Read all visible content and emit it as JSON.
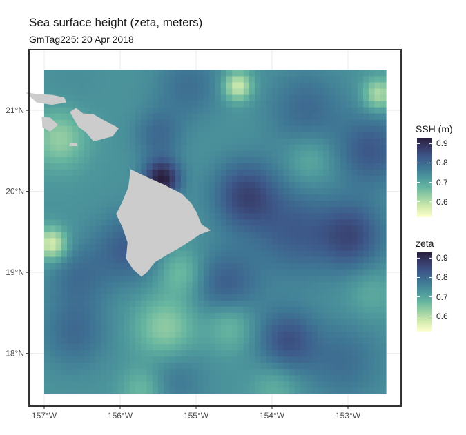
{
  "title": "Sea surface height (zeta, meters)",
  "subtitle": "GmTag225: 20 Apr 2018",
  "colors": {
    "panel_background": "#ffffff",
    "gridline": "#ebebeb",
    "panel_border": "#333333",
    "land": "#cccccc",
    "colormap": [
      "#fdfece",
      "#d4ecae",
      "#9dd1a4",
      "#67b6a0",
      "#4d979c",
      "#3f7895",
      "#3d5a8b",
      "#383c6a",
      "#291f3d"
    ]
  },
  "chart_data": {
    "type": "heatmap",
    "variable": "zeta",
    "xlim": [
      -157.2,
      -152.3
    ],
    "ylim": [
      17.35,
      21.75
    ],
    "data_extent": {
      "lon": [
        -157.0,
        -152.5
      ],
      "lat": [
        17.5,
        21.5
      ]
    },
    "value_range": [
      0.52,
      0.93
    ],
    "x_ticks": [
      {
        "value": -157,
        "label": "157°W"
      },
      {
        "value": -156,
        "label": "156°W"
      },
      {
        "value": -155,
        "label": "155°W"
      },
      {
        "value": -154,
        "label": "154°W"
      },
      {
        "value": -153,
        "label": "153°W"
      }
    ],
    "y_ticks": [
      {
        "value": 21,
        "label": "21°N"
      },
      {
        "value": 20,
        "label": "20°N"
      },
      {
        "value": 19,
        "label": "19°N"
      },
      {
        "value": 18,
        "label": "18°N"
      }
    ],
    "background_level": 0.73,
    "features": [
      {
        "lon": -155.45,
        "lat": 20.15,
        "value": 0.93,
        "sigma": 0.17
      },
      {
        "lon": -155.9,
        "lat": 19.3,
        "value": 0.82,
        "sigma": 0.3
      },
      {
        "lon": -156.55,
        "lat": 18.95,
        "value": 0.79,
        "sigma": 0.28
      },
      {
        "lon": -154.35,
        "lat": 19.95,
        "value": 0.86,
        "sigma": 0.3
      },
      {
        "lon": -153.7,
        "lat": 19.5,
        "value": 0.82,
        "sigma": 0.38
      },
      {
        "lon": -152.95,
        "lat": 19.45,
        "value": 0.85,
        "sigma": 0.3
      },
      {
        "lon": -152.7,
        "lat": 20.5,
        "value": 0.83,
        "sigma": 0.3
      },
      {
        "lon": -153.55,
        "lat": 21.0,
        "value": 0.8,
        "sigma": 0.35
      },
      {
        "lon": -155.1,
        "lat": 21.3,
        "value": 0.79,
        "sigma": 0.3
      },
      {
        "lon": -155.5,
        "lat": 20.7,
        "value": 0.8,
        "sigma": 0.22
      },
      {
        "lon": -156.6,
        "lat": 21.3,
        "value": 0.74,
        "sigma": 0.3
      },
      {
        "lon": -154.6,
        "lat": 18.85,
        "value": 0.82,
        "sigma": 0.3
      },
      {
        "lon": -153.8,
        "lat": 18.15,
        "value": 0.84,
        "sigma": 0.28
      },
      {
        "lon": -153.05,
        "lat": 17.9,
        "value": 0.79,
        "sigma": 0.35
      },
      {
        "lon": -156.6,
        "lat": 18.25,
        "value": 0.8,
        "sigma": 0.3
      },
      {
        "lon": -155.3,
        "lat": 17.7,
        "value": 0.78,
        "sigma": 0.3
      },
      {
        "lon": -154.45,
        "lat": 21.3,
        "value": 0.57,
        "sigma": 0.13
      },
      {
        "lon": -156.9,
        "lat": 19.35,
        "value": 0.56,
        "sigma": 0.14
      },
      {
        "lon": -155.4,
        "lat": 18.3,
        "value": 0.63,
        "sigma": 0.28
      },
      {
        "lon": -154.55,
        "lat": 18.35,
        "value": 0.66,
        "sigma": 0.22
      },
      {
        "lon": -152.6,
        "lat": 21.2,
        "value": 0.6,
        "sigma": 0.14
      },
      {
        "lon": -156.8,
        "lat": 20.65,
        "value": 0.63,
        "sigma": 0.25
      },
      {
        "lon": -155.2,
        "lat": 19.0,
        "value": 0.66,
        "sigma": 0.2
      },
      {
        "lon": -153.5,
        "lat": 20.4,
        "value": 0.68,
        "sigma": 0.22
      },
      {
        "lon": -155.7,
        "lat": 17.55,
        "value": 0.66,
        "sigma": 0.2
      },
      {
        "lon": -153.95,
        "lat": 17.6,
        "value": 0.68,
        "sigma": 0.22
      },
      {
        "lon": -152.7,
        "lat": 18.75,
        "value": 0.69,
        "sigma": 0.22
      }
    ],
    "land": [
      {
        "name": "Hawaii",
        "lonlat": [
          [
            -155.86,
            20.27
          ],
          [
            -155.66,
            20.18
          ],
          [
            -155.42,
            20.08
          ],
          [
            -155.19,
            19.97
          ],
          [
            -155.07,
            19.86
          ],
          [
            -155.0,
            19.75
          ],
          [
            -154.93,
            19.59
          ],
          [
            -154.81,
            19.52
          ],
          [
            -154.95,
            19.47
          ],
          [
            -155.19,
            19.32
          ],
          [
            -155.38,
            19.22
          ],
          [
            -155.54,
            19.13
          ],
          [
            -155.65,
            19.0
          ],
          [
            -155.72,
            18.95
          ],
          [
            -155.83,
            19.04
          ],
          [
            -155.92,
            19.17
          ],
          [
            -155.9,
            19.37
          ],
          [
            -155.97,
            19.56
          ],
          [
            -156.05,
            19.72
          ],
          [
            -155.98,
            19.85
          ],
          [
            -155.89,
            20.05
          ],
          [
            -155.86,
            20.27
          ]
        ]
      },
      {
        "name": "Maui",
        "lonlat": [
          [
            -156.66,
            20.98
          ],
          [
            -156.58,
            21.03
          ],
          [
            -156.49,
            20.96
          ],
          [
            -156.35,
            20.95
          ],
          [
            -156.2,
            20.87
          ],
          [
            -156.02,
            20.78
          ],
          [
            -156.1,
            20.68
          ],
          [
            -156.35,
            20.62
          ],
          [
            -156.45,
            20.73
          ],
          [
            -156.55,
            20.8
          ],
          [
            -156.66,
            20.98
          ]
        ]
      },
      {
        "name": "Molokai",
        "lonlat": [
          [
            -157.24,
            21.22
          ],
          [
            -157.1,
            21.2
          ],
          [
            -156.9,
            21.19
          ],
          [
            -156.74,
            21.16
          ],
          [
            -156.71,
            21.1
          ],
          [
            -156.9,
            21.07
          ],
          [
            -157.1,
            21.1
          ],
          [
            -157.24,
            21.22
          ]
        ]
      },
      {
        "name": "Lanai",
        "lonlat": [
          [
            -157.03,
            20.92
          ],
          [
            -156.92,
            20.91
          ],
          [
            -156.82,
            20.82
          ],
          [
            -156.92,
            20.74
          ],
          [
            -157.02,
            20.79
          ],
          [
            -157.03,
            20.92
          ]
        ]
      },
      {
        "name": "Kahoolawe",
        "lonlat": [
          [
            -156.66,
            20.59
          ],
          [
            -156.57,
            20.59
          ],
          [
            -156.56,
            20.56
          ],
          [
            -156.67,
            20.56
          ],
          [
            -156.66,
            20.59
          ]
        ]
      }
    ]
  },
  "legends": [
    {
      "title": "SSH (m)",
      "ticks": [
        {
          "value": 0.9,
          "label": "0.9"
        },
        {
          "value": 0.8,
          "label": "0.8"
        },
        {
          "value": 0.7,
          "label": "0.7"
        },
        {
          "value": 0.6,
          "label": "0.6"
        }
      ]
    },
    {
      "title": "zeta",
      "ticks": [
        {
          "value": 0.9,
          "label": "0.9"
        },
        {
          "value": 0.8,
          "label": "0.8"
        },
        {
          "value": 0.7,
          "label": "0.7"
        },
        {
          "value": 0.6,
          "label": "0.6"
        }
      ]
    }
  ]
}
